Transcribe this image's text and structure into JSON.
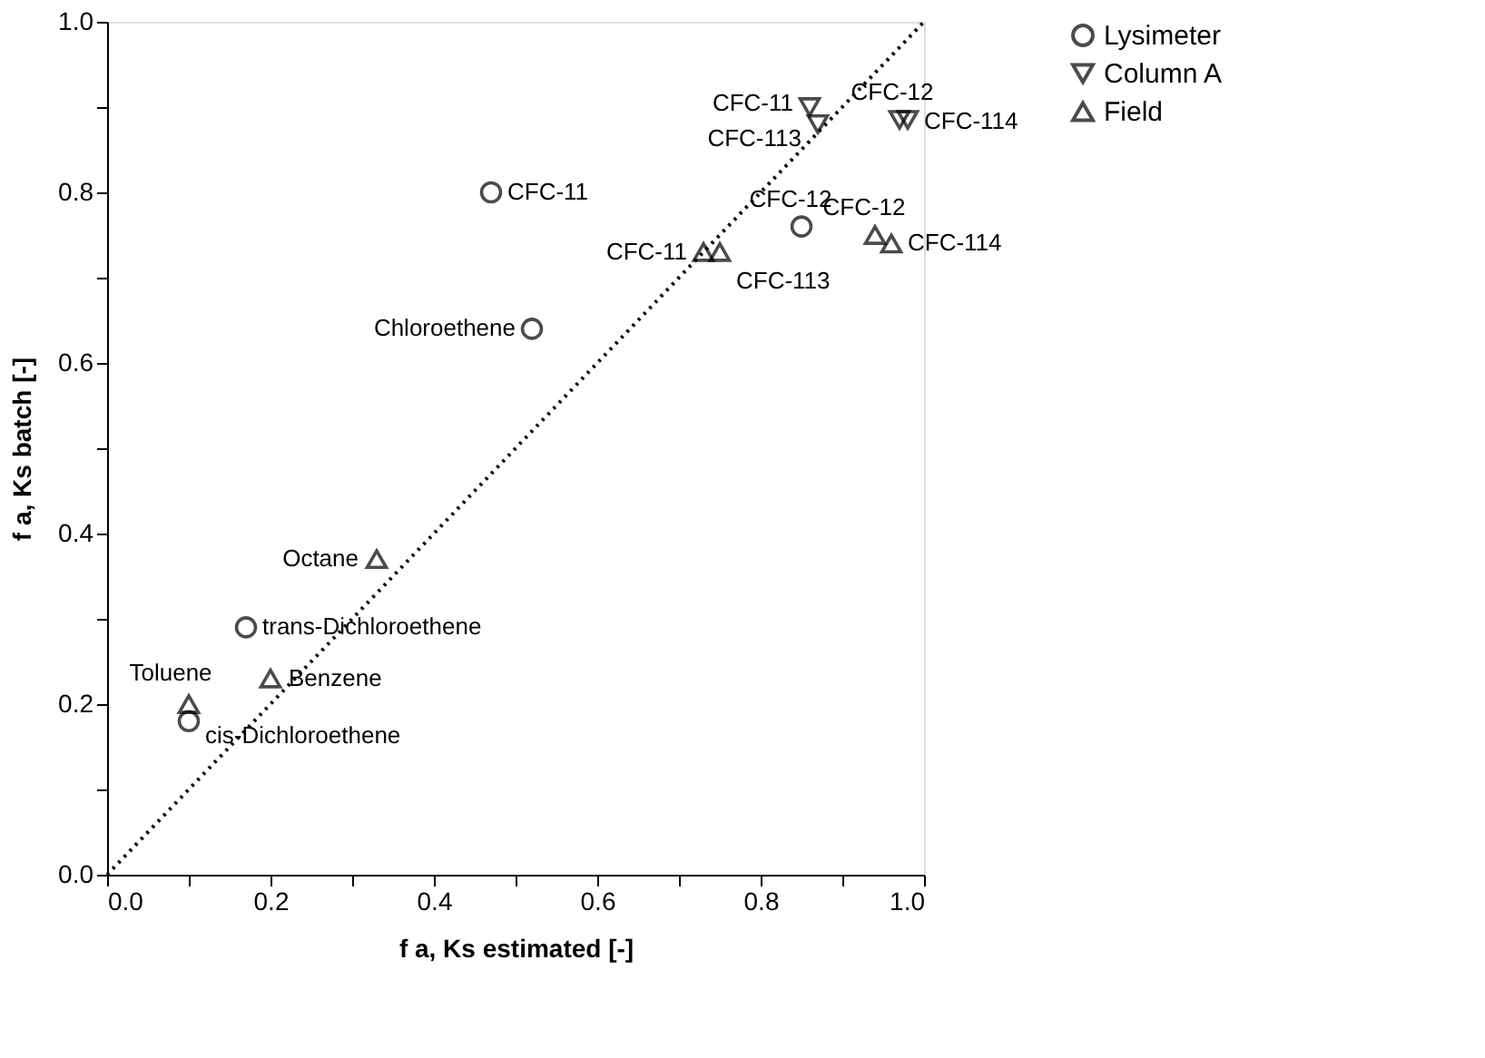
{
  "chart_data": {
    "type": "scatter",
    "xlabel": "f a, Ks estimated [-]",
    "ylabel": "f a, Ks batch [-]",
    "xlim": [
      0,
      1
    ],
    "ylim": [
      0,
      1
    ],
    "xticks": [
      {
        "value": 0,
        "label": "0.0"
      },
      {
        "value": 0.1,
        "label": null
      },
      {
        "value": 0.2,
        "label": "0.2"
      },
      {
        "value": 0.3,
        "label": null
      },
      {
        "value": 0.4,
        "label": "0.4"
      },
      {
        "value": 0.5,
        "label": null
      },
      {
        "value": 0.6,
        "label": "0.6"
      },
      {
        "value": 0.7,
        "label": null
      },
      {
        "value": 0.8,
        "label": "0.8"
      },
      {
        "value": 0.9,
        "label": null
      },
      {
        "value": 1,
        "label": "1.0"
      }
    ],
    "yticks": [
      {
        "value": 0,
        "label": "0.0"
      },
      {
        "value": 0.1,
        "label": null
      },
      {
        "value": 0.2,
        "label": "0.2"
      },
      {
        "value": 0.3,
        "label": null
      },
      {
        "value": 0.4,
        "label": "0.4"
      },
      {
        "value": 0.5,
        "label": null
      },
      {
        "value": 0.6,
        "label": "0.6"
      },
      {
        "value": 0.7,
        "label": null
      },
      {
        "value": 0.8,
        "label": "0.8"
      },
      {
        "value": 0.9,
        "label": null
      },
      {
        "value": 1,
        "label": "1.0"
      }
    ],
    "grid": false,
    "legend": "right",
    "series": [
      {
        "type": "line",
        "color": "#000000",
        "line_style": "dotted",
        "marker": "none",
        "x": [
          0,
          1
        ],
        "values": [
          0,
          1
        ]
      },
      {
        "name": "Lysimeter",
        "color": "#000000",
        "marker": "circle",
        "x": [
          0.47,
          0.52,
          0.85,
          0.17,
          0.1
        ],
        "values": [
          0.8,
          0.64,
          0.76,
          0.29,
          0.18
        ]
      },
      {
        "name": "Column A",
        "color": "#000000",
        "marker": "triangle-down",
        "x": [
          0.86,
          0.87,
          0.97,
          0.98
        ],
        "values": [
          0.9,
          0.88,
          0.885,
          0.885
        ]
      },
      {
        "name": "Field",
        "color": "#000000",
        "marker": "triangle",
        "x": [
          0.73,
          0.75,
          0.94,
          0.96,
          0.33,
          0.2,
          0.1
        ],
        "values": [
          0.73,
          0.73,
          0.75,
          0.74,
          0.37,
          0.23,
          0.2
        ]
      }
    ],
    "annotations": [
      {
        "text": "CFC-11",
        "x": 0.47,
        "y": 0.8
      },
      {
        "text": "Chloroethene",
        "x": 0.52,
        "y": 0.64
      },
      {
        "text": "CFC-12",
        "x": 0.85,
        "y": 0.76
      },
      {
        "text": "trans-Dichloroethene",
        "x": 0.17,
        "y": 0.29
      },
      {
        "text": "cis-Dichloroethene",
        "x": 0.1,
        "y": 0.18
      },
      {
        "text": "CFC-11",
        "x": 0.86,
        "y": 0.9
      },
      {
        "text": "CFC-113",
        "x": 0.87,
        "y": 0.88
      },
      {
        "text": "CFC-12",
        "x": 0.97,
        "y": 0.885
      },
      {
        "text": "CFC-114",
        "x": 0.98,
        "y": 0.885
      },
      {
        "text": "CFC-11",
        "x": 0.73,
        "y": 0.73
      },
      {
        "text": "CFC-113",
        "x": 0.75,
        "y": 0.73
      },
      {
        "text": "CFC-12",
        "x": 0.94,
        "y": 0.75
      },
      {
        "text": "CFC-114",
        "x": 0.96,
        "y": 0.74
      },
      {
        "text": "Octane",
        "x": 0.33,
        "y": 0.37
      },
      {
        "text": "Benzene",
        "x": 0.2,
        "y": 0.23
      },
      {
        "text": "Toluene",
        "x": 0.1,
        "y": 0.2
      }
    ]
  }
}
